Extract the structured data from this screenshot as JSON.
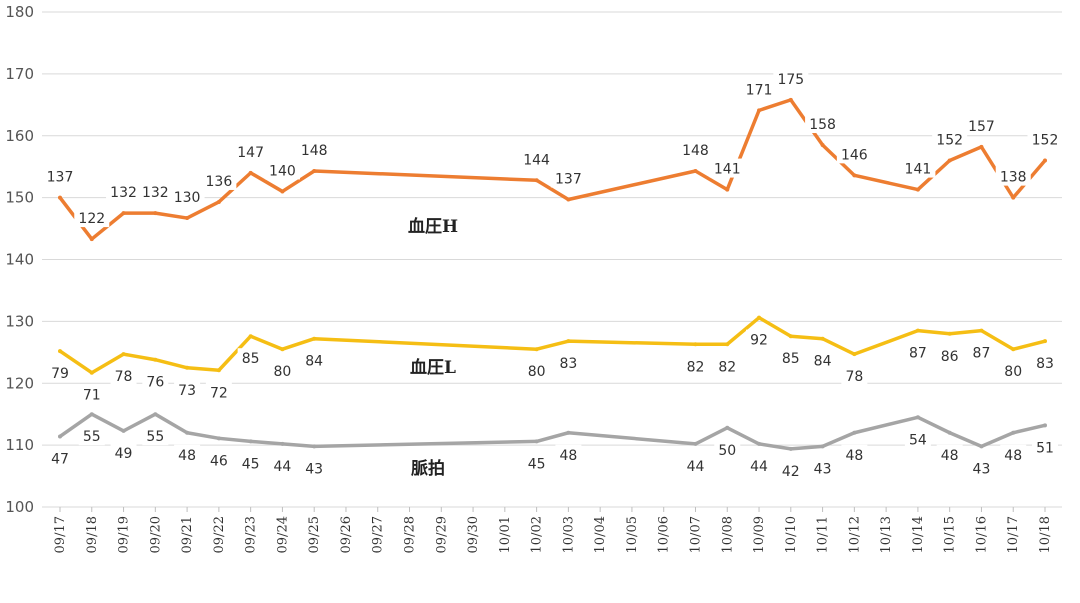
{
  "chart_data": {
    "type": "line",
    "ylim": [
      100,
      180
    ],
    "yticks": [
      100,
      110,
      120,
      130,
      140,
      150,
      160,
      170,
      180
    ],
    "grid": true,
    "categories": [
      "09/17",
      "09/18",
      "09/19",
      "09/20",
      "09/21",
      "09/22",
      "09/23",
      "09/24",
      "09/25",
      "09/26",
      "09/27",
      "09/28",
      "09/29",
      "09/30",
      "10/01",
      "10/02",
      "10/03",
      "10/04",
      "10/05",
      "10/06",
      "10/07",
      "10/08",
      "10/09",
      "10/10",
      "10/11",
      "10/12",
      "10/13",
      "10/14",
      "10/15",
      "10/16",
      "10/17",
      "10/18"
    ],
    "series": [
      {
        "name": "血圧H",
        "color": "#ED7D31",
        "points": [
          {
            "x": "09/17",
            "y": 150.0,
            "label": "137"
          },
          {
            "x": "09/18",
            "y": 143.3,
            "label": "122"
          },
          {
            "x": "09/19",
            "y": 147.5,
            "label": "132"
          },
          {
            "x": "09/20",
            "y": 147.5,
            "label": "132"
          },
          {
            "x": "09/21",
            "y": 146.7,
            "label": "130"
          },
          {
            "x": "09/22",
            "y": 149.3,
            "label": "136"
          },
          {
            "x": "09/23",
            "y": 154.0,
            "label": "147"
          },
          {
            "x": "09/24",
            "y": 151.0,
            "label": "140"
          },
          {
            "x": "09/25",
            "y": 154.3,
            "label": "148"
          },
          {
            "x": "10/02",
            "y": 152.8,
            "label": "144"
          },
          {
            "x": "10/03",
            "y": 149.7,
            "label": "137"
          },
          {
            "x": "10/07",
            "y": 154.3,
            "label": "148"
          },
          {
            "x": "10/08",
            "y": 151.3,
            "label": "141"
          },
          {
            "x": "10/09",
            "y": 164.1,
            "label": "171"
          },
          {
            "x": "10/10",
            "y": 165.8,
            "label": "175"
          },
          {
            "x": "10/11",
            "y": 158.5,
            "label": "158"
          },
          {
            "x": "10/12",
            "y": 153.6,
            "label": "146"
          },
          {
            "x": "10/14",
            "y": 151.3,
            "label": "141"
          },
          {
            "x": "10/15",
            "y": 156.0,
            "label": "152"
          },
          {
            "x": "10/16",
            "y": 158.2,
            "label": "157"
          },
          {
            "x": "10/17",
            "y": 150.0,
            "label": "138"
          },
          {
            "x": "10/18",
            "y": 156.0,
            "label": "152"
          }
        ]
      },
      {
        "name": "血圧L",
        "color": "#F5BE14",
        "points": [
          {
            "x": "09/17",
            "y": 125.2,
            "label": "79"
          },
          {
            "x": "09/18",
            "y": 121.7,
            "label": "71"
          },
          {
            "x": "09/19",
            "y": 124.7,
            "label": "78"
          },
          {
            "x": "09/20",
            "y": 123.8,
            "label": "76"
          },
          {
            "x": "09/21",
            "y": 122.5,
            "label": "73"
          },
          {
            "x": "09/22",
            "y": 122.1,
            "label": "72"
          },
          {
            "x": "09/23",
            "y": 127.6,
            "label": "85"
          },
          {
            "x": "09/24",
            "y": 125.5,
            "label": "80"
          },
          {
            "x": "09/25",
            "y": 127.2,
            "label": "84"
          },
          {
            "x": "10/02",
            "y": 125.5,
            "label": "80"
          },
          {
            "x": "10/03",
            "y": 126.8,
            "label": "83"
          },
          {
            "x": "10/07",
            "y": 126.3,
            "label": "82"
          },
          {
            "x": "10/08",
            "y": 126.3,
            "label": "82"
          },
          {
            "x": "10/09",
            "y": 130.6,
            "label": "92"
          },
          {
            "x": "10/10",
            "y": 127.6,
            "label": "85"
          },
          {
            "x": "10/11",
            "y": 127.2,
            "label": "84"
          },
          {
            "x": "10/12",
            "y": 124.7,
            "label": "78"
          },
          {
            "x": "10/14",
            "y": 128.5,
            "label": "87"
          },
          {
            "x": "10/15",
            "y": 128.0,
            "label": "86"
          },
          {
            "x": "10/16",
            "y": 128.5,
            "label": "87"
          },
          {
            "x": "10/17",
            "y": 125.5,
            "label": "80"
          },
          {
            "x": "10/18",
            "y": 126.8,
            "label": "83"
          }
        ]
      },
      {
        "name": "脈拍",
        "color": "#A5A5A5",
        "points": [
          {
            "x": "09/17",
            "y": 111.4,
            "label": "47"
          },
          {
            "x": "09/18",
            "y": 115.0,
            "label": "55"
          },
          {
            "x": "09/19",
            "y": 112.3,
            "label": "49"
          },
          {
            "x": "09/20",
            "y": 115.0,
            "label": "55"
          },
          {
            "x": "09/21",
            "y": 112.0,
            "label": "48"
          },
          {
            "x": "09/22",
            "y": 111.1,
            "label": "46"
          },
          {
            "x": "09/23",
            "y": 110.6,
            "label": "45"
          },
          {
            "x": "09/24",
            "y": 110.2,
            "label": "44"
          },
          {
            "x": "09/25",
            "y": 109.8,
            "label": "43"
          },
          {
            "x": "10/02",
            "y": 110.6,
            "label": "45"
          },
          {
            "x": "10/03",
            "y": 112.0,
            "label": "48"
          },
          {
            "x": "10/07",
            "y": 110.2,
            "label": "44"
          },
          {
            "x": "10/08",
            "y": 112.8,
            "label": "50"
          },
          {
            "x": "10/09",
            "y": 110.2,
            "label": "44"
          },
          {
            "x": "10/10",
            "y": 109.4,
            "label": "42"
          },
          {
            "x": "10/11",
            "y": 109.8,
            "label": "43"
          },
          {
            "x": "10/12",
            "y": 112.0,
            "label": "48"
          },
          {
            "x": "10/14",
            "y": 114.5,
            "label": "54"
          },
          {
            "x": "10/15",
            "y": 112.0,
            "label": "48"
          },
          {
            "x": "10/16",
            "y": 109.8,
            "label": "43"
          },
          {
            "x": "10/17",
            "y": 112.0,
            "label": "48"
          },
          {
            "x": "10/18",
            "y": 113.2,
            "label": "51"
          }
        ]
      }
    ],
    "title": "",
    "xlabel": "",
    "ylabel": ""
  }
}
